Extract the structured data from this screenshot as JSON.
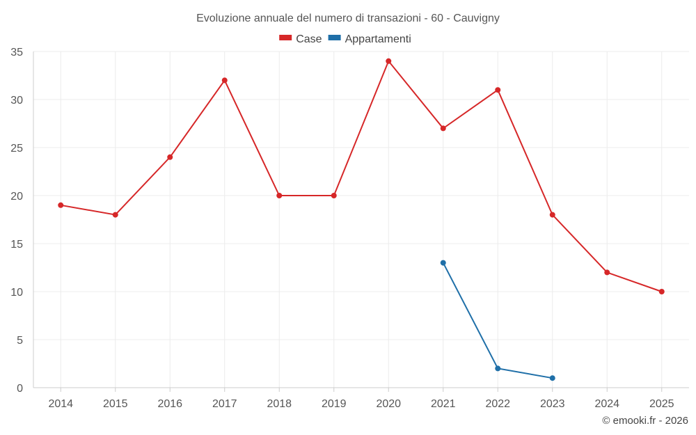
{
  "chart_data": {
    "type": "line",
    "title": "Evoluzione annuale del numero di transazioni - 60 - Cauvigny",
    "xlabel": "",
    "ylabel": "",
    "categories": [
      "2014",
      "2015",
      "2016",
      "2017",
      "2018",
      "2019",
      "2020",
      "2021",
      "2022",
      "2023",
      "2024",
      "2025"
    ],
    "ylim": [
      0,
      35
    ],
    "yticks": [
      0,
      5,
      10,
      15,
      20,
      25,
      30,
      35
    ],
    "grid": true,
    "legend": "top-center",
    "series": [
      {
        "name": "Case",
        "color": "#d62728",
        "values": [
          19,
          18,
          24,
          32,
          20,
          20,
          34,
          27,
          31,
          18,
          12,
          10
        ]
      },
      {
        "name": "Appartamenti",
        "color": "#1f6fa8",
        "values": [
          null,
          null,
          null,
          null,
          null,
          null,
          null,
          13,
          2,
          1,
          null,
          null
        ]
      }
    ]
  },
  "credit": "© emooki.fr - 2026"
}
